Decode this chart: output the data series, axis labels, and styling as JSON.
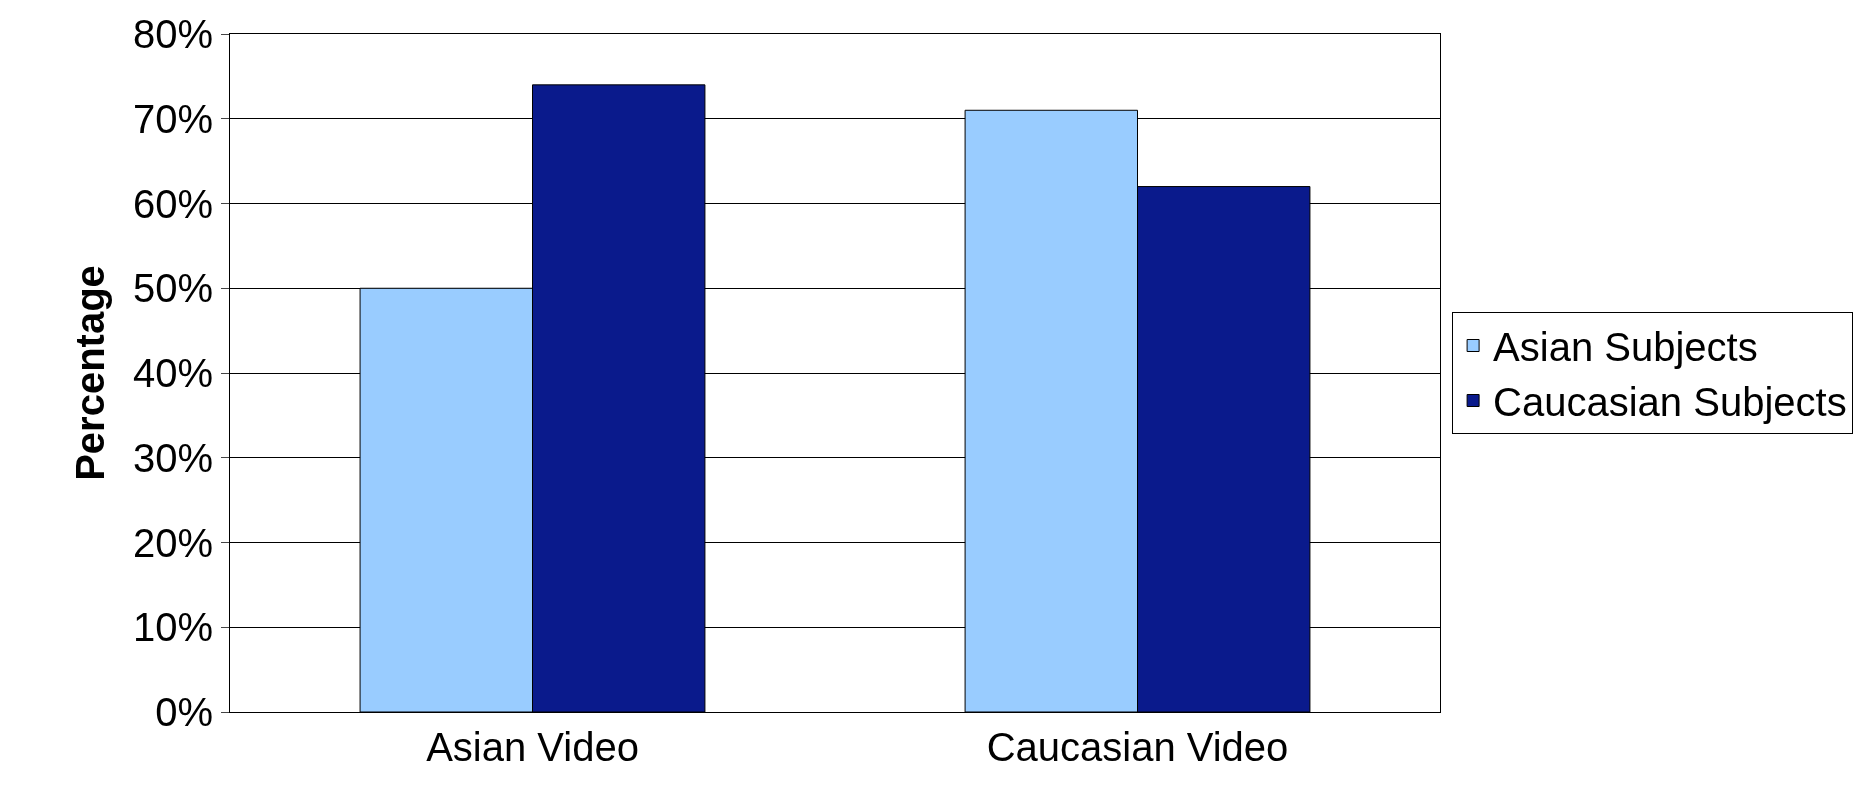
{
  "chart_data": {
    "type": "bar",
    "ylabel": "Percentage",
    "categories": [
      "Asian Video",
      "Caucasian Video"
    ],
    "series": [
      {
        "name": "Asian Subjects",
        "color": "#99ccff",
        "values": [
          50,
          71
        ]
      },
      {
        "name": "Caucasian Subjects",
        "color": "#0a1a8c",
        "values": [
          74,
          62
        ]
      }
    ],
    "ylim": [
      0,
      80
    ],
    "yticks": [
      {
        "value": 0,
        "label": "0%"
      },
      {
        "value": 10,
        "label": "10%"
      },
      {
        "value": 20,
        "label": "20%"
      },
      {
        "value": 30,
        "label": "30%"
      },
      {
        "value": 40,
        "label": "40%"
      },
      {
        "value": 50,
        "label": "50%"
      },
      {
        "value": 60,
        "label": "60%"
      },
      {
        "value": 70,
        "label": "70%"
      },
      {
        "value": 80,
        "label": "80%"
      }
    ],
    "grid": "y",
    "legend": "right"
  }
}
